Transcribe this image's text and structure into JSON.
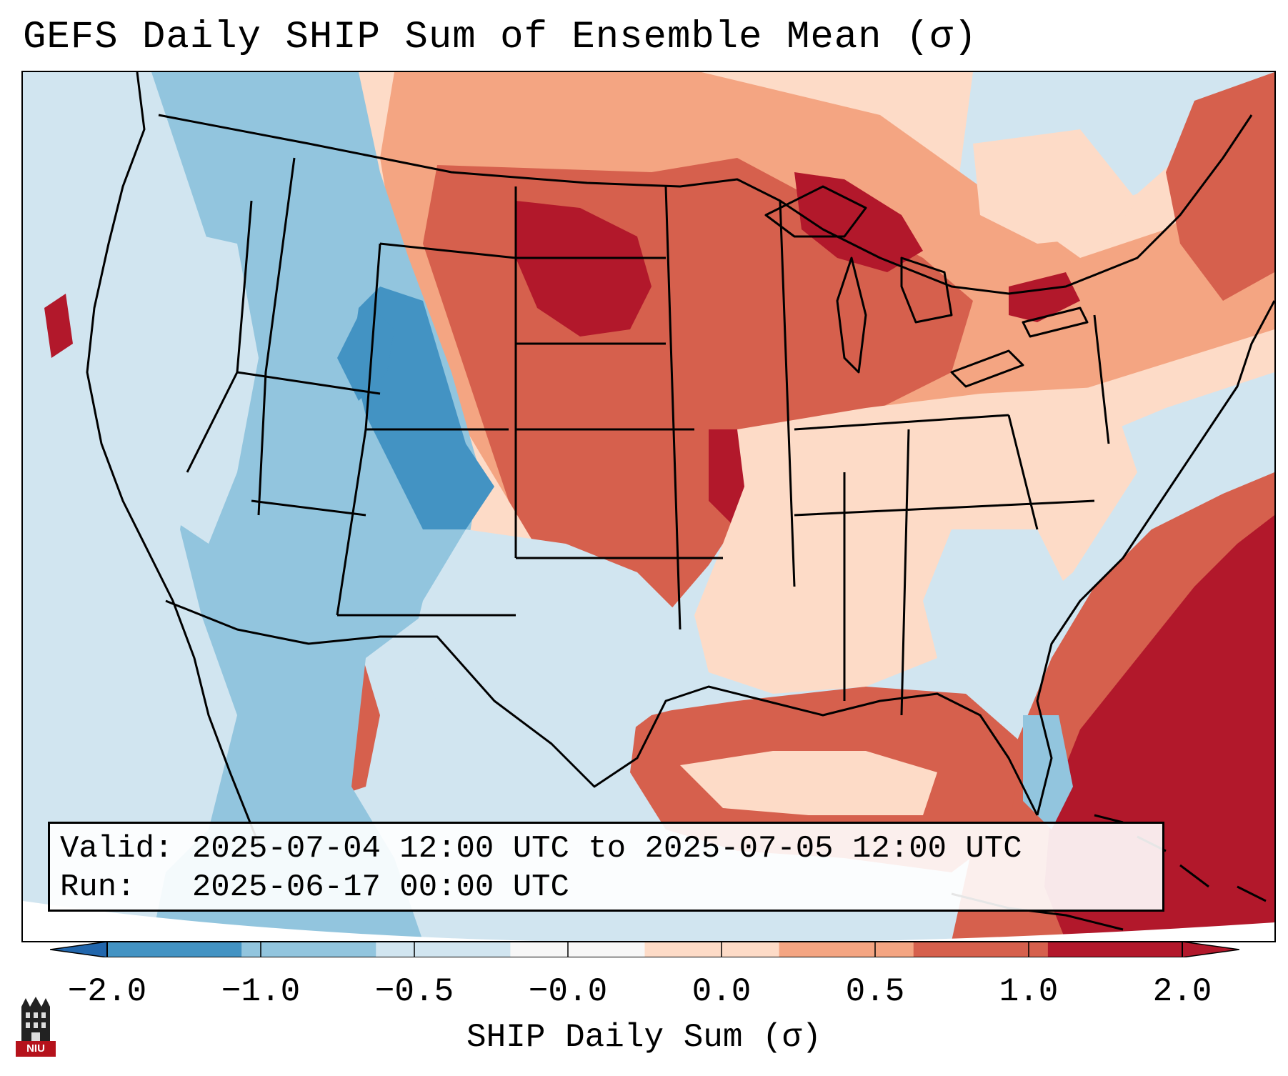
{
  "title": "GEFS Daily SHIP Sum of Ensemble Mean (σ)",
  "info": {
    "valid_label": "Valid:",
    "valid_value": "2025-07-04 12:00 UTC to 2025-07-05 12:00 UTC",
    "run_label": "Run:",
    "run_value": "2025-06-17 00:00 UTC"
  },
  "colorbar": {
    "label": "SHIP Daily Sum (σ)",
    "ticks": [
      "−2.0",
      "−1.0",
      "−0.5",
      "−0.0",
      "0.0",
      "0.5",
      "1.0",
      "2.0"
    ],
    "colors": [
      "#4393c3",
      "#92c5de",
      "#d1e5f0",
      "#f7f7f7",
      "#fddbc7",
      "#f4a582",
      "#d6604d",
      "#b2182b"
    ],
    "extend_low_color": "#2166ac",
    "extend_high_color": "#b2182b"
  },
  "logo": {
    "text": "NIU",
    "icon": "niu-tower-icon"
  }
}
